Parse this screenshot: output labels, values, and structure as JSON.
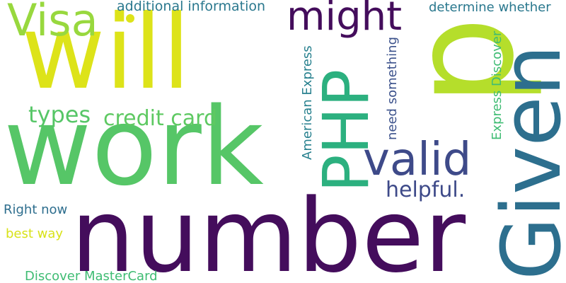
{
  "words": [
    {
      "id": "number",
      "text": "number",
      "color": "#440d5c",
      "rotation": "horizontal"
    },
    {
      "id": "work",
      "text": "work",
      "color": "#56c667",
      "rotation": "horizontal"
    },
    {
      "id": "will",
      "text": "will",
      "color": "#dde319",
      "rotation": "horizontal"
    },
    {
      "id": "p",
      "text": "p",
      "color": "#b5de2b",
      "rotation": "vertical"
    },
    {
      "id": "given",
      "text": "Given",
      "color": "#2d6f8e",
      "rotation": "vertical"
    },
    {
      "id": "php",
      "text": "PHP",
      "color": "#2cb07f",
      "rotation": "vertical"
    },
    {
      "id": "visa",
      "text": "Visa",
      "color": "#98d83e",
      "rotation": "horizontal"
    },
    {
      "id": "might",
      "text": "might",
      "color": "#440d5c",
      "rotation": "horizontal"
    },
    {
      "id": "valid",
      "text": "valid",
      "color": "#3e4a89",
      "rotation": "horizontal"
    },
    {
      "id": "helpful",
      "text": "helpful.",
      "color": "#3e4a89",
      "rotation": "horizontal"
    },
    {
      "id": "types",
      "text": "types",
      "color": "#56c667",
      "rotation": "horizontal"
    },
    {
      "id": "credit",
      "text": "credit card",
      "color": "#5ec962",
      "rotation": "horizontal"
    },
    {
      "id": "addinfo",
      "text": "additional information",
      "color": "#2a788e",
      "rotation": "horizontal"
    },
    {
      "id": "determine",
      "text": "determine whether",
      "color": "#2a788e",
      "rotation": "horizontal"
    },
    {
      "id": "amex",
      "text": "American Express",
      "color": "#27808e",
      "rotation": "vertical"
    },
    {
      "id": "need",
      "text": "need something",
      "color": "#3b518b",
      "rotation": "vertical"
    },
    {
      "id": "expdisc",
      "text": "Express Discover",
      "color": "#3fbc73",
      "rotation": "vertical"
    },
    {
      "id": "rightnow",
      "text": "Right now",
      "color": "#2e6e8e",
      "rotation": "horizontal"
    },
    {
      "id": "bestway",
      "text": "best way",
      "color": "#d8e219",
      "rotation": "horizontal"
    },
    {
      "id": "discmc",
      "text": "Discover MasterCard",
      "color": "#3fbc73",
      "rotation": "horizontal"
    }
  ]
}
